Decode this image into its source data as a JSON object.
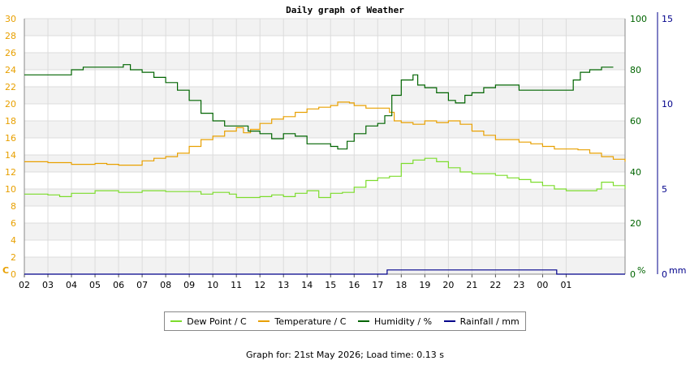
{
  "chart_data": {
    "type": "line",
    "title": "Daily graph of Weather",
    "x_tick_labels": [
      "02",
      "03",
      "04",
      "05",
      "06",
      "07",
      "08",
      "09",
      "10",
      "11",
      "12",
      "13",
      "14",
      "15",
      "16",
      "17",
      "18",
      "19",
      "20",
      "21",
      "22",
      "23",
      "00",
      "01"
    ],
    "axes": {
      "left": {
        "unit_label": "C",
        "min": 0,
        "max": 30,
        "ticks": [
          0,
          2,
          4,
          6,
          8,
          10,
          12,
          14,
          16,
          18,
          20,
          22,
          24,
          26,
          28,
          30
        ],
        "color": "#e8a000"
      },
      "right_humidity": {
        "unit_label": "%",
        "min": 0,
        "max": 100,
        "ticks": [
          0,
          20,
          40,
          60,
          80,
          100
        ],
        "color": "#006400"
      },
      "right_rainfall": {
        "unit_label": "mm",
        "min": 0,
        "max": 15,
        "ticks": [
          0,
          5,
          10,
          15
        ],
        "color": "#00008b"
      }
    },
    "grid": true,
    "legend_position": "bottom",
    "series": [
      {
        "name": "Dew Point / C",
        "axis": "left",
        "color": "#7cdc2c",
        "points": [
          [
            0,
            9.4
          ],
          [
            1,
            9.3
          ],
          [
            1.5,
            9.1
          ],
          [
            2,
            9.5
          ],
          [
            3,
            9.8
          ],
          [
            4,
            9.6
          ],
          [
            5,
            9.8
          ],
          [
            6,
            9.7
          ],
          [
            7,
            9.7
          ],
          [
            7.5,
            9.4
          ],
          [
            8,
            9.6
          ],
          [
            8.7,
            9.4
          ],
          [
            9,
            9.0
          ],
          [
            9.5,
            9.0
          ],
          [
            10,
            9.1
          ],
          [
            10.5,
            9.3
          ],
          [
            11,
            9.1
          ],
          [
            11.5,
            9.5
          ],
          [
            12,
            9.8
          ],
          [
            12.5,
            9.0
          ],
          [
            13,
            9.5
          ],
          [
            13.5,
            9.6
          ],
          [
            14,
            10.2
          ],
          [
            14.5,
            11.0
          ],
          [
            15,
            11.3
          ],
          [
            15.5,
            11.5
          ],
          [
            16,
            13.0
          ],
          [
            16.5,
            13.4
          ],
          [
            17,
            13.6
          ],
          [
            17.5,
            13.2
          ],
          [
            18,
            12.5
          ],
          [
            18.5,
            12.0
          ],
          [
            19,
            11.8
          ],
          [
            20,
            11.6
          ],
          [
            20.5,
            11.3
          ],
          [
            21,
            11.1
          ],
          [
            21.5,
            10.8
          ],
          [
            22,
            10.4
          ],
          [
            22.5,
            10.0
          ],
          [
            23,
            9.8
          ],
          [
            24,
            9.8
          ],
          [
            24.3,
            10.0
          ],
          [
            24.5,
            10.8
          ],
          [
            25,
            10.4
          ],
          [
            25.5,
            10.0
          ]
        ]
      },
      {
        "name": "Temperature / C",
        "axis": "left",
        "color": "#e8a000",
        "points": [
          [
            0,
            13.2
          ],
          [
            1,
            13.1
          ],
          [
            2,
            12.9
          ],
          [
            3,
            13.0
          ],
          [
            3.5,
            12.9
          ],
          [
            4,
            12.8
          ],
          [
            4.5,
            12.8
          ],
          [
            5,
            13.3
          ],
          [
            5.5,
            13.6
          ],
          [
            6,
            13.8
          ],
          [
            6.5,
            14.2
          ],
          [
            7,
            15.0
          ],
          [
            7.5,
            15.8
          ],
          [
            8,
            16.2
          ],
          [
            8.5,
            16.8
          ],
          [
            9,
            17.2
          ],
          [
            9.3,
            16.6
          ],
          [
            9.6,
            17.0
          ],
          [
            10,
            17.7
          ],
          [
            10.5,
            18.2
          ],
          [
            11,
            18.5
          ],
          [
            11.5,
            19.0
          ],
          [
            12,
            19.4
          ],
          [
            12.5,
            19.6
          ],
          [
            13,
            19.8
          ],
          [
            13.3,
            20.2
          ],
          [
            13.8,
            20.1
          ],
          [
            14,
            19.8
          ],
          [
            14.5,
            19.5
          ],
          [
            15,
            19.5
          ],
          [
            15.5,
            19.0
          ],
          [
            15.7,
            18.0
          ],
          [
            16,
            17.8
          ],
          [
            16.5,
            17.6
          ],
          [
            17,
            18.0
          ],
          [
            17.5,
            17.8
          ],
          [
            18,
            18.0
          ],
          [
            18.5,
            17.6
          ],
          [
            19,
            16.8
          ],
          [
            19.5,
            16.3
          ],
          [
            20,
            15.8
          ],
          [
            21,
            15.5
          ],
          [
            21.5,
            15.3
          ],
          [
            22,
            15.0
          ],
          [
            22.5,
            14.7
          ],
          [
            23,
            14.7
          ],
          [
            23.5,
            14.6
          ],
          [
            24,
            14.2
          ],
          [
            24.5,
            13.8
          ],
          [
            25,
            13.5
          ],
          [
            25.5,
            13.2
          ]
        ]
      },
      {
        "name": "Humidity / %",
        "axis": "right",
        "color": "#006400",
        "points": [
          [
            0,
            78
          ],
          [
            0.5,
            78
          ],
          [
            1.5,
            78
          ],
          [
            2,
            80
          ],
          [
            2.5,
            81
          ],
          [
            3,
            81
          ],
          [
            3.5,
            81
          ],
          [
            4,
            81
          ],
          [
            4.2,
            82
          ],
          [
            4.5,
            80
          ],
          [
            5,
            79
          ],
          [
            5.5,
            77
          ],
          [
            6,
            75
          ],
          [
            6.5,
            72
          ],
          [
            7,
            68
          ],
          [
            7.5,
            65
          ],
          [
            7.5,
            63
          ],
          [
            8,
            60
          ],
          [
            8.3,
            60
          ],
          [
            8.5,
            58
          ],
          [
            9,
            58
          ],
          [
            9.5,
            56
          ],
          [
            10,
            55
          ],
          [
            10.5,
            53
          ],
          [
            11,
            55
          ],
          [
            11.5,
            54
          ],
          [
            12,
            51
          ],
          [
            12.5,
            51
          ],
          [
            13,
            50
          ],
          [
            13.3,
            49
          ],
          [
            13.7,
            52
          ],
          [
            14,
            55
          ],
          [
            14.5,
            58
          ],
          [
            15,
            59
          ],
          [
            15.3,
            62
          ],
          [
            15.6,
            70
          ],
          [
            16,
            76
          ],
          [
            16.5,
            78
          ],
          [
            16.7,
            74
          ],
          [
            17,
            73
          ],
          [
            17.5,
            71
          ],
          [
            18,
            68
          ],
          [
            18.3,
            67
          ],
          [
            18.7,
            70
          ],
          [
            19,
            71
          ],
          [
            19.5,
            73
          ],
          [
            20,
            74
          ],
          [
            20.5,
            74
          ],
          [
            21,
            72
          ],
          [
            21.5,
            72
          ],
          [
            22,
            72
          ],
          [
            22.5,
            72
          ],
          [
            23,
            72
          ],
          [
            23.3,
            76
          ],
          [
            23.6,
            79
          ],
          [
            24,
            80
          ],
          [
            24.5,
            81
          ],
          [
            25,
            81
          ]
        ]
      },
      {
        "name": "Rainfall / mm",
        "axis": "right2",
        "color": "#00008b",
        "points": [
          [
            0,
            0
          ],
          [
            15.4,
            0
          ],
          [
            15.4,
            0.25
          ],
          [
            22.6,
            0.25
          ],
          [
            22.6,
            0
          ],
          [
            25.5,
            0
          ]
        ]
      }
    ]
  }
}
